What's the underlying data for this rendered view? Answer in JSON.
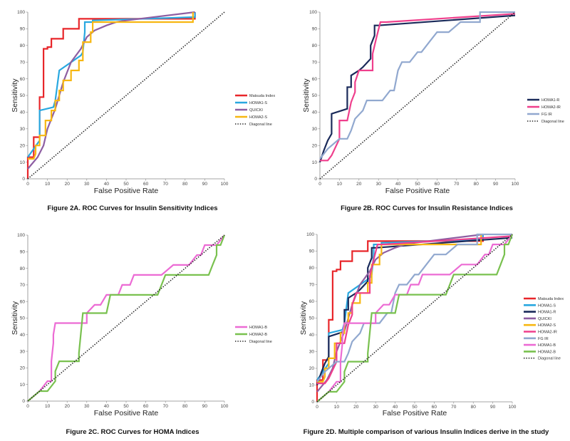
{
  "chart_data": [
    {
      "type": "line",
      "caption": "Figure 2A.  ROC Curves for Insulin Sensitivity Indices",
      "xlabel": "False Positive Rate",
      "ylabel": "Sensitivity",
      "xlim": [
        0,
        100
      ],
      "ylim": [
        0,
        100
      ],
      "xticks": [
        0,
        10,
        20,
        30,
        40,
        50,
        60,
        70,
        80,
        90,
        100
      ],
      "yticks": [
        0,
        10,
        20,
        30,
        40,
        50,
        60,
        70,
        80,
        90,
        100
      ],
      "grid": false,
      "legend": "right",
      "series": [
        {
          "name": "Matsuda Index",
          "color": "#e8262a",
          "x": [
            0,
            0,
            3,
            3,
            6,
            6,
            8,
            8,
            10,
            10,
            12,
            12,
            18,
            18,
            26,
            26,
            85,
            85
          ],
          "y": [
            0,
            13,
            13,
            25,
            25,
            49,
            49,
            78,
            78,
            79,
            79,
            84,
            84,
            90,
            90,
            96,
            96,
            100
          ]
        },
        {
          "name": "HOMA1-S",
          "color": "#29a8e0",
          "x": [
            0,
            6,
            6,
            13,
            14,
            16,
            16,
            27,
            28,
            29,
            29,
            33,
            33,
            85,
            85
          ],
          "y": [
            13,
            23,
            41,
            43,
            47,
            65,
            65,
            74,
            76,
            88,
            94,
            94,
            95,
            97,
            100
          ]
        },
        {
          "name": "QUICKI",
          "color": "#8e5ea2",
          "x": [
            0,
            5,
            8,
            10,
            14,
            18,
            22,
            27,
            30,
            34,
            40,
            45,
            50,
            85
          ],
          "y": [
            6,
            13,
            20,
            30,
            42,
            58,
            70,
            78,
            85,
            89,
            92,
            94,
            95,
            100
          ]
        },
        {
          "name": "HOMA2-S",
          "color": "#f7b712",
          "x": [
            0,
            3,
            4,
            4,
            6,
            6,
            9,
            9,
            12,
            12,
            14,
            14,
            16,
            16,
            18,
            18,
            22,
            22,
            26,
            26,
            28,
            28,
            32,
            32,
            33,
            33,
            84,
            84
          ],
          "y": [
            12,
            12,
            15,
            20,
            20,
            26,
            26,
            35,
            35,
            41,
            41,
            47,
            47,
            53,
            53,
            59,
            59,
            65,
            65,
            71,
            71,
            82,
            82,
            88,
            88,
            94,
            94,
            100
          ]
        },
        {
          "name": "Diagonal line",
          "color": "#222222",
          "dashed": true,
          "x": [
            0,
            100
          ],
          "y": [
            0,
            100
          ]
        }
      ]
    },
    {
      "type": "line",
      "caption": "Figure 2B. ROC Curves for Insulin Resistance Indices",
      "xlabel": "False Positive Rate",
      "ylabel": "Sensitivity",
      "xlim": [
        0,
        100
      ],
      "ylim": [
        0,
        100
      ],
      "xticks": [
        0,
        10,
        20,
        30,
        40,
        50,
        60,
        70,
        80,
        90,
        100
      ],
      "yticks": [
        0,
        10,
        20,
        30,
        40,
        50,
        60,
        70,
        80,
        90,
        100
      ],
      "grid": false,
      "legend": "right",
      "series": [
        {
          "name": "HOMA1-R",
          "color": "#1a2a5a",
          "x": [
            0,
            2,
            4,
            6,
            6,
            14,
            14,
            16,
            16,
            20,
            22,
            26,
            26,
            28,
            28,
            30,
            100
          ],
          "y": [
            10,
            17,
            23,
            27,
            39,
            42,
            55,
            55,
            62,
            65,
            67,
            72,
            80,
            86,
            92,
            92,
            98
          ]
        },
        {
          "name": "HOMA2-IR",
          "color": "#ef3f8c",
          "x": [
            0,
            4,
            6,
            10,
            10,
            14,
            16,
            18,
            18,
            20,
            22,
            27,
            27,
            29,
            31,
            34,
            100
          ],
          "y": [
            11,
            11,
            14,
            24,
            35,
            35,
            46,
            52,
            58,
            65,
            65,
            65,
            75,
            85,
            94,
            94,
            99
          ]
        },
        {
          "name": "FG IR",
          "color": "#91a8cf",
          "x": [
            0,
            2,
            4,
            10,
            14,
            16,
            18,
            22,
            24,
            28,
            32,
            36,
            38,
            40,
            42,
            46,
            50,
            52,
            56,
            60,
            62,
            66,
            72,
            80,
            82,
            82,
            100
          ],
          "y": [
            12,
            15,
            18,
            24,
            24,
            29,
            36,
            41,
            47,
            47,
            47,
            53,
            53,
            65,
            70,
            70,
            76,
            76,
            82,
            88,
            88,
            88,
            94,
            94,
            94,
            100,
            100
          ]
        },
        {
          "name": "Diagonal line",
          "color": "#222222",
          "dashed": true,
          "x": [
            0,
            100
          ],
          "y": [
            0,
            100
          ]
        }
      ]
    },
    {
      "type": "line",
      "caption": "Figure 2C. ROC Curves for HOMA Indices",
      "xlabel": "False Positive Rate",
      "ylabel": "Sensitivity",
      "xlim": [
        0,
        100
      ],
      "ylim": [
        0,
        100
      ],
      "xticks": [
        0,
        10,
        20,
        30,
        40,
        50,
        60,
        70,
        80,
        90,
        100
      ],
      "yticks": [
        0,
        10,
        20,
        30,
        40,
        50,
        60,
        70,
        80,
        90,
        100
      ],
      "grid": false,
      "legend": "right",
      "series": [
        {
          "name": "HOMA1-B",
          "color": "#ec6bd4",
          "x": [
            0,
            6,
            10,
            12,
            12,
            13,
            13,
            14,
            14,
            16,
            30,
            30,
            34,
            37,
            40,
            40,
            46,
            48,
            52,
            54,
            56,
            58,
            68,
            74,
            80,
            82,
            86,
            88,
            90,
            92,
            96,
            100
          ],
          "y": [
            0,
            6,
            12,
            12,
            24,
            35,
            40,
            47,
            47,
            47,
            47,
            53,
            58,
            58,
            64,
            64,
            64,
            70,
            70,
            76,
            76,
            76,
            76,
            82,
            82,
            82,
            88,
            88,
            94,
            94,
            94,
            100
          ]
        },
        {
          "name": "HOMA2-B",
          "color": "#79c14f",
          "x": [
            0,
            6,
            10,
            14,
            14,
            16,
            20,
            26,
            26,
            28,
            30,
            34,
            36,
            40,
            42,
            66,
            70,
            80,
            90,
            92,
            94,
            96,
            96,
            98,
            100
          ],
          "y": [
            0,
            6,
            6,
            12,
            18,
            24,
            24,
            24,
            29,
            53,
            53,
            53,
            53,
            53,
            64,
            64,
            76,
            76,
            76,
            76,
            82,
            88,
            94,
            94,
            100
          ]
        },
        {
          "name": "Diagonal line",
          "color": "#222222",
          "dashed": true,
          "x": [
            0,
            100
          ],
          "y": [
            0,
            100
          ]
        }
      ]
    },
    {
      "type": "line",
      "caption": "Figure 2D. Multiple comparison of various Insulin Indices derive in the study",
      "xlabel": "False Positive Rate",
      "ylabel": "Sensitivity",
      "xlim": [
        0,
        100
      ],
      "ylim": [
        0,
        100
      ],
      "xticks": [
        0,
        10,
        20,
        30,
        40,
        50,
        60,
        70,
        80,
        90,
        100
      ],
      "yticks": [
        0,
        10,
        20,
        30,
        40,
        50,
        60,
        70,
        80,
        90,
        100
      ],
      "grid": false,
      "legend": "right",
      "series": [
        {
          "name": "Matsuda Index",
          "color": "#e8262a",
          "x": [
            0,
            0,
            3,
            3,
            6,
            6,
            8,
            8,
            10,
            10,
            12,
            12,
            18,
            18,
            26,
            26,
            85,
            85
          ],
          "y": [
            0,
            13,
            13,
            25,
            25,
            49,
            49,
            78,
            78,
            79,
            79,
            84,
            84,
            90,
            90,
            96,
            96,
            100
          ]
        },
        {
          "name": "HOMA1-S",
          "color": "#29a8e0",
          "x": [
            0,
            6,
            6,
            13,
            14,
            16,
            16,
            27,
            28,
            29,
            29,
            33,
            33,
            85,
            85
          ],
          "y": [
            13,
            23,
            41,
            43,
            47,
            65,
            65,
            74,
            76,
            88,
            94,
            94,
            95,
            97,
            100
          ]
        },
        {
          "name": "HOMA1-R",
          "color": "#1a2a5a",
          "x": [
            0,
            2,
            4,
            6,
            6,
            14,
            14,
            16,
            16,
            20,
            22,
            26,
            26,
            28,
            28,
            30,
            100
          ],
          "y": [
            10,
            17,
            23,
            27,
            39,
            42,
            55,
            55,
            62,
            65,
            67,
            72,
            80,
            86,
            92,
            92,
            98
          ]
        },
        {
          "name": "QUICKI",
          "color": "#8e5ea2",
          "x": [
            0,
            5,
            8,
            10,
            14,
            18,
            22,
            27,
            30,
            34,
            40,
            45,
            50,
            85
          ],
          "y": [
            6,
            13,
            20,
            30,
            42,
            58,
            70,
            78,
            85,
            89,
            92,
            94,
            95,
            100
          ]
        },
        {
          "name": "HOMA2-S",
          "color": "#f7b712",
          "x": [
            0,
            3,
            4,
            4,
            6,
            6,
            9,
            9,
            12,
            12,
            14,
            14,
            16,
            16,
            18,
            18,
            22,
            22,
            26,
            26,
            28,
            28,
            32,
            32,
            33,
            33,
            84,
            84
          ],
          "y": [
            12,
            12,
            15,
            20,
            20,
            26,
            26,
            35,
            35,
            41,
            41,
            47,
            47,
            53,
            53,
            59,
            59,
            65,
            65,
            71,
            71,
            82,
            82,
            88,
            88,
            94,
            94,
            100
          ]
        },
        {
          "name": "HOMA2-IR",
          "color": "#ef3f8c",
          "x": [
            0,
            4,
            6,
            10,
            10,
            14,
            16,
            18,
            18,
            20,
            22,
            27,
            27,
            29,
            31,
            34,
            100
          ],
          "y": [
            11,
            11,
            14,
            24,
            35,
            35,
            46,
            52,
            58,
            65,
            65,
            65,
            75,
            85,
            94,
            94,
            99
          ]
        },
        {
          "name": "FG IR",
          "color": "#91a8cf",
          "x": [
            0,
            2,
            4,
            10,
            14,
            16,
            18,
            22,
            24,
            28,
            32,
            36,
            38,
            40,
            42,
            46,
            50,
            52,
            56,
            60,
            62,
            66,
            72,
            80,
            82,
            82,
            100
          ],
          "y": [
            12,
            15,
            18,
            24,
            24,
            29,
            36,
            41,
            47,
            47,
            47,
            53,
            53,
            65,
            70,
            70,
            76,
            76,
            82,
            88,
            88,
            88,
            94,
            94,
            94,
            100,
            100
          ]
        },
        {
          "name": "HOMA1-B",
          "color": "#ec6bd4",
          "x": [
            0,
            6,
            10,
            12,
            12,
            13,
            13,
            14,
            14,
            16,
            30,
            30,
            34,
            37,
            40,
            40,
            46,
            48,
            52,
            54,
            56,
            58,
            68,
            74,
            80,
            82,
            86,
            88,
            90,
            92,
            96,
            100
          ],
          "y": [
            0,
            6,
            12,
            12,
            24,
            35,
            40,
            47,
            47,
            47,
            47,
            53,
            58,
            58,
            64,
            64,
            64,
            70,
            70,
            76,
            76,
            76,
            76,
            82,
            82,
            82,
            88,
            88,
            94,
            94,
            94,
            100
          ]
        },
        {
          "name": "HOMA2-B",
          "color": "#79c14f",
          "x": [
            0,
            6,
            10,
            14,
            14,
            16,
            20,
            26,
            26,
            28,
            30,
            34,
            36,
            40,
            42,
            66,
            70,
            80,
            90,
            92,
            94,
            96,
            96,
            98,
            100
          ],
          "y": [
            0,
            6,
            6,
            12,
            18,
            24,
            24,
            24,
            29,
            53,
            53,
            53,
            53,
            53,
            64,
            64,
            76,
            76,
            76,
            76,
            82,
            88,
            94,
            94,
            100
          ]
        },
        {
          "name": "Diagonal line",
          "color": "#222222",
          "dashed": true,
          "x": [
            0,
            100
          ],
          "y": [
            0,
            100
          ]
        }
      ]
    }
  ]
}
